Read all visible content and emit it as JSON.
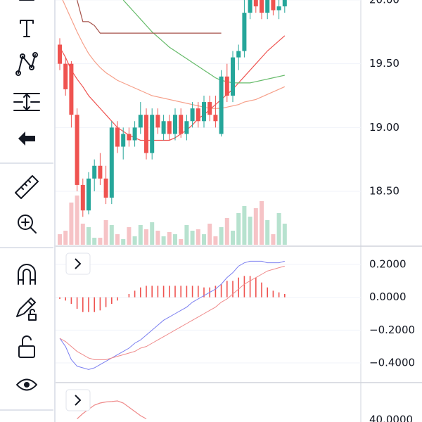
{
  "price_axis": {
    "ticks": [
      {
        "value": 20,
        "label": "20.00"
      },
      {
        "value": 19.5,
        "label": "19.50"
      },
      {
        "value": 19,
        "label": "19.00"
      },
      {
        "value": 18.5,
        "label": "18.50"
      }
    ]
  },
  "candles": [
    [
      19.65,
      19.7,
      19.45,
      19.5
    ],
    [
      19.5,
      19.55,
      19.25,
      19.3
    ],
    [
      19.5,
      19.52,
      19.0,
      19.1
    ],
    [
      19.1,
      19.15,
      18.5,
      18.55
    ],
    [
      18.55,
      18.6,
      18.3,
      18.35
    ],
    [
      18.35,
      18.65,
      18.32,
      18.6
    ],
    [
      18.6,
      18.75,
      18.5,
      18.7
    ],
    [
      18.7,
      18.8,
      18.55,
      18.6
    ],
    [
      18.6,
      18.7,
      18.4,
      18.45
    ],
    [
      18.45,
      19.05,
      18.4,
      19.0
    ],
    [
      19.0,
      19.05,
      18.8,
      18.85
    ],
    [
      18.85,
      19.0,
      18.75,
      18.95
    ],
    [
      18.95,
      19.0,
      18.85,
      18.9
    ],
    [
      18.9,
      19.05,
      18.85,
      19.0
    ],
    [
      19.0,
      19.2,
      18.95,
      19.1
    ],
    [
      19.1,
      19.15,
      18.75,
      18.8
    ],
    [
      18.8,
      19.15,
      18.75,
      19.1
    ],
    [
      19.1,
      19.15,
      18.95,
      19.0
    ],
    [
      18.95,
      19.1,
      18.9,
      19.05
    ],
    [
      19.05,
      19.1,
      18.9,
      18.95
    ],
    [
      18.95,
      19.15,
      18.9,
      19.1
    ],
    [
      19.1,
      19.15,
      18.92,
      18.95
    ],
    [
      18.95,
      19.1,
      18.9,
      19.05
    ],
    [
      19.05,
      19.2,
      19.0,
      19.15
    ],
    [
      19.15,
      19.2,
      19.0,
      19.05
    ],
    [
      19.05,
      19.25,
      19.0,
      19.2
    ],
    [
      19.2,
      19.25,
      19.05,
      19.1
    ],
    [
      19.1,
      19.25,
      19.0,
      19.05
    ],
    [
      18.95,
      19.45,
      18.93,
      19.4
    ],
    [
      19.4,
      19.5,
      19.2,
      19.25
    ],
    [
      19.25,
      19.6,
      19.2,
      19.55
    ],
    [
      19.55,
      19.65,
      19.45,
      19.6
    ],
    [
      19.6,
      20.05,
      19.55,
      19.9
    ],
    [
      19.9,
      20.05,
      19.85,
      20.0
    ],
    [
      20.0,
      20.05,
      19.9,
      19.95
    ],
    [
      20.0,
      20.05,
      19.85,
      19.9
    ],
    [
      19.9,
      20.05,
      19.85,
      20.0
    ],
    [
      20.0,
      20.05,
      19.88,
      19.92
    ],
    [
      19.92,
      20.05,
      19.85,
      19.95
    ],
    [
      19.95,
      20.05,
      19.9,
      20.0
    ]
  ],
  "volume": [
    15,
    20,
    60,
    70,
    30,
    25,
    10,
    10,
    35,
    28,
    15,
    8,
    25,
    12,
    28,
    22,
    32,
    20,
    12,
    18,
    15,
    8,
    28,
    20,
    22,
    15,
    30,
    12,
    25,
    38,
    20,
    45,
    55,
    40,
    52,
    62,
    35,
    15,
    45,
    30
  ],
  "moving_averages": [
    {
      "color": "#ef5350",
      "values": [
        19.63,
        19.55,
        19.45,
        19.38,
        19.32,
        19.25,
        19.2,
        19.15,
        19.1,
        19.05,
        19.0,
        18.97,
        18.94,
        18.92,
        18.9,
        18.9,
        18.9,
        18.9,
        18.9,
        18.9,
        18.92,
        18.95,
        18.98,
        19.02,
        19.07,
        19.1,
        19.14,
        19.18,
        19.22,
        19.26,
        19.3,
        19.35,
        19.4,
        19.45,
        19.5,
        19.55,
        19.6,
        19.64,
        19.68,
        19.72
      ]
    },
    {
      "color": "#f6a08a",
      "values": [
        20.05,
        19.95,
        19.85,
        19.75,
        19.66,
        19.58,
        19.52,
        19.47,
        19.43,
        19.4,
        19.37,
        19.35,
        19.33,
        19.31,
        19.29,
        19.27,
        19.25,
        19.24,
        19.23,
        19.22,
        19.21,
        19.2,
        19.19,
        19.18,
        19.17,
        19.16,
        19.15,
        19.15,
        19.15,
        19.16,
        19.17,
        19.18,
        19.2,
        19.21,
        19.22,
        19.24,
        19.26,
        19.28,
        19.3,
        19.32
      ]
    },
    {
      "color": "#66bb6a",
      "values": [
        null,
        null,
        null,
        null,
        null,
        null,
        null,
        null,
        null,
        null,
        null,
        20.0,
        19.95,
        19.9,
        19.85,
        19.8,
        19.75,
        19.71,
        19.67,
        19.63,
        19.6,
        19.57,
        19.54,
        19.51,
        19.48,
        19.45,
        19.42,
        19.39,
        19.37,
        19.36,
        19.35,
        19.35,
        19.35,
        19.35,
        19.36,
        19.37,
        19.38,
        19.39,
        19.4,
        19.41
      ]
    },
    {
      "color": "#a5524a",
      "values": [
        null,
        null,
        null,
        20.0,
        19.83,
        19.83,
        19.8,
        19.74,
        19.74,
        19.74,
        19.74,
        19.74,
        19.74,
        19.74,
        19.74,
        19.74,
        19.74,
        19.74,
        19.74,
        19.74,
        19.74,
        19.74,
        19.74,
        19.74,
        19.74,
        19.74,
        19.74,
        19.74,
        19.74,
        null,
        null,
        null,
        null,
        null,
        null,
        null,
        null,
        null,
        null,
        null
      ]
    }
  ],
  "macd": {
    "ticks": [
      {
        "value": 0.2,
        "label": "0.2000"
      },
      {
        "value": 0,
        "label": "0.0000"
      },
      {
        "value": -0.2,
        "label": "−0.2000"
      },
      {
        "value": -0.4,
        "label": "−0.4000"
      }
    ],
    "histogram": [
      -0.01,
      -0.02,
      -0.04,
      -0.07,
      -0.09,
      -0.09,
      -0.09,
      -0.08,
      -0.06,
      -0.04,
      -0.02,
      0.0,
      0.02,
      0.04,
      0.06,
      0.07,
      0.07,
      0.07,
      0.07,
      0.07,
      0.07,
      0.07,
      0.07,
      0.07,
      0.07,
      0.06,
      0.06,
      0.07,
      0.08,
      0.1,
      0.1,
      0.12,
      0.13,
      0.13,
      0.12,
      0.09,
      0.06,
      0.04,
      0.03,
      0.02
    ],
    "macd_line": [
      -0.25,
      -0.3,
      -0.38,
      -0.42,
      -0.43,
      -0.44,
      -0.43,
      -0.41,
      -0.39,
      -0.37,
      -0.35,
      -0.33,
      -0.31,
      -0.28,
      -0.26,
      -0.23,
      -0.2,
      -0.17,
      -0.14,
      -0.12,
      -0.1,
      -0.08,
      -0.06,
      -0.03,
      -0.01,
      0.01,
      0.03,
      0.05,
      0.08,
      0.12,
      0.15,
      0.19,
      0.21,
      0.22,
      0.22,
      0.22,
      0.21,
      0.21,
      0.21,
      0.22
    ],
    "signal_line": [
      -0.25,
      -0.27,
      -0.3,
      -0.33,
      -0.35,
      -0.37,
      -0.38,
      -0.38,
      -0.38,
      -0.37,
      -0.36,
      -0.35,
      -0.34,
      -0.33,
      -0.31,
      -0.3,
      -0.28,
      -0.26,
      -0.24,
      -0.22,
      -0.2,
      -0.18,
      -0.16,
      -0.14,
      -0.12,
      -0.1,
      -0.08,
      -0.06,
      -0.03,
      -0.01,
      0.02,
      0.05,
      0.08,
      0.1,
      0.12,
      0.14,
      0.16,
      0.17,
      0.18,
      0.19
    ]
  },
  "rsi": {
    "ticks": [
      {
        "value": 40,
        "label": "40.0000"
      }
    ],
    "values": [
      null,
      null,
      null,
      40.5,
      43,
      45,
      47,
      48,
      48.5,
      48.7,
      49,
      48,
      46,
      44,
      42,
      40.5,
      null,
      null,
      null,
      null,
      null,
      null,
      null,
      null,
      null,
      null,
      null,
      null,
      null,
      null,
      null,
      null,
      null,
      null,
      null,
      null,
      null,
      null,
      null,
      null
    ]
  }
}
